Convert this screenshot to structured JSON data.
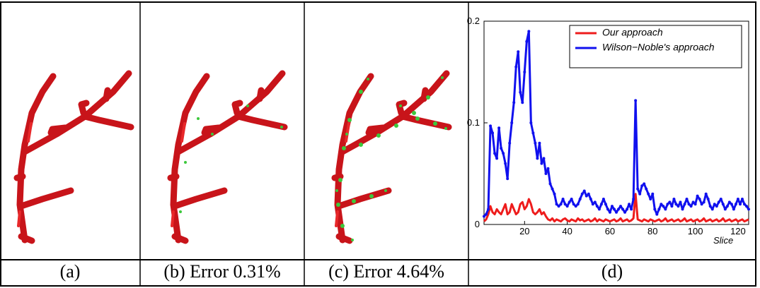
{
  "panels": [
    {
      "caption": "(a)"
    },
    {
      "caption": "(b) Error 0.31%"
    },
    {
      "caption": "(c) Error 4.64%"
    },
    {
      "caption": "(d)"
    }
  ],
  "chart_data": {
    "type": "line",
    "xlabel": "Slice",
    "x": [
      1,
      2,
      3,
      4,
      5,
      6,
      7,
      8,
      9,
      10,
      11,
      12,
      13,
      14,
      15,
      16,
      17,
      18,
      19,
      20,
      21,
      22,
      23,
      24,
      25,
      26,
      27,
      28,
      29,
      30,
      31,
      32,
      33,
      34,
      35,
      36,
      37,
      38,
      39,
      40,
      41,
      42,
      43,
      44,
      45,
      46,
      47,
      48,
      49,
      50,
      51,
      52,
      53,
      54,
      55,
      56,
      57,
      58,
      59,
      60,
      61,
      62,
      63,
      64,
      65,
      66,
      67,
      68,
      69,
      70,
      71,
      72,
      73,
      74,
      75,
      76,
      77,
      78,
      79,
      80,
      81,
      82,
      83,
      84,
      85,
      86,
      87,
      88,
      89,
      90,
      91,
      92,
      93,
      94,
      95,
      96,
      97,
      98,
      99,
      100,
      101,
      102,
      103,
      104,
      105,
      106,
      107,
      108,
      109,
      110,
      111,
      112,
      113,
      114,
      115,
      116,
      117,
      118,
      119,
      120,
      121,
      122,
      123,
      124,
      125
    ],
    "series": [
      {
        "name": "Our approach",
        "color": "#ee1c1c",
        "values": [
          0.003,
          0.005,
          0.01,
          0.018,
          0.012,
          0.01,
          0.015,
          0.012,
          0.01,
          0.015,
          0.02,
          0.01,
          0.012,
          0.02,
          0.015,
          0.01,
          0.012,
          0.02,
          0.022,
          0.015,
          0.018,
          0.025,
          0.02,
          0.012,
          0.01,
          0.012,
          0.015,
          0.01,
          0.012,
          0.008,
          0.005,
          0.004,
          0.006,
          0.003,
          0.005,
          0.004,
          0.003,
          0.005,
          0.006,
          0.004,
          0.003,
          0.005,
          0.004,
          0.003,
          0.006,
          0.004,
          0.005,
          0.003,
          0.004,
          0.005,
          0.003,
          0.004,
          0.006,
          0.003,
          0.005,
          0.004,
          0.003,
          0.005,
          0.004,
          0.003,
          0.004,
          0.005,
          0.003,
          0.004,
          0.006,
          0.003,
          0.004,
          0.005,
          0.003,
          0.004,
          0.006,
          0.03,
          0.005,
          0.004,
          0.003,
          0.005,
          0.004,
          0.003,
          0.005,
          0.004,
          0.003,
          0.004,
          0.005,
          0.003,
          0.004,
          0.006,
          0.003,
          0.004,
          0.005,
          0.003,
          0.004,
          0.005,
          0.003,
          0.004,
          0.006,
          0.003,
          0.004,
          0.005,
          0.003,
          0.004,
          0.005,
          0.003,
          0.004,
          0.006,
          0.003,
          0.004,
          0.005,
          0.003,
          0.004,
          0.005,
          0.003,
          0.004,
          0.006,
          0.003,
          0.004,
          0.005,
          0.003,
          0.004,
          0.005,
          0.003,
          0.004,
          0.005,
          0.003,
          0.004,
          0.005
        ]
      },
      {
        "name": "Wilson−Noble's approach",
        "color": "#1010ee",
        "markers": true,
        "values": [
          0.008,
          0.01,
          0.015,
          0.097,
          0.09,
          0.07,
          0.065,
          0.095,
          0.075,
          0.07,
          0.06,
          0.045,
          0.08,
          0.1,
          0.12,
          0.155,
          0.17,
          0.13,
          0.12,
          0.15,
          0.18,
          0.19,
          0.1,
          0.09,
          0.08,
          0.065,
          0.08,
          0.06,
          0.065,
          0.05,
          0.055,
          0.04,
          0.035,
          0.03,
          0.02,
          0.018,
          0.02,
          0.025,
          0.02,
          0.018,
          0.022,
          0.025,
          0.02,
          0.018,
          0.02,
          0.025,
          0.03,
          0.033,
          0.028,
          0.03,
          0.025,
          0.02,
          0.022,
          0.018,
          0.015,
          0.02,
          0.025,
          0.02,
          0.015,
          0.012,
          0.018,
          0.015,
          0.012,
          0.015,
          0.018,
          0.015,
          0.012,
          0.015,
          0.02,
          0.015,
          0.025,
          0.122,
          0.035,
          0.03,
          0.038,
          0.04,
          0.035,
          0.03,
          0.025,
          0.03,
          0.015,
          0.01,
          0.015,
          0.02,
          0.018,
          0.015,
          0.02,
          0.022,
          0.018,
          0.025,
          0.02,
          0.018,
          0.022,
          0.015,
          0.02,
          0.025,
          0.02,
          0.018,
          0.022,
          0.02,
          0.028,
          0.025,
          0.02,
          0.022,
          0.03,
          0.025,
          0.018,
          0.015,
          0.02,
          0.018,
          0.022,
          0.025,
          0.02,
          0.015,
          0.018,
          0.022,
          0.02,
          0.015,
          0.02,
          0.025,
          0.02,
          0.025,
          0.02,
          0.018,
          0.015
        ]
      }
    ],
    "xlim": [
      1,
      125
    ],
    "ylim": [
      0,
      0.2
    ],
    "xticks": [
      20,
      40,
      60,
      80,
      100,
      120
    ],
    "yticks": [
      0,
      0.1,
      0.2
    ],
    "legend": "upper right"
  }
}
